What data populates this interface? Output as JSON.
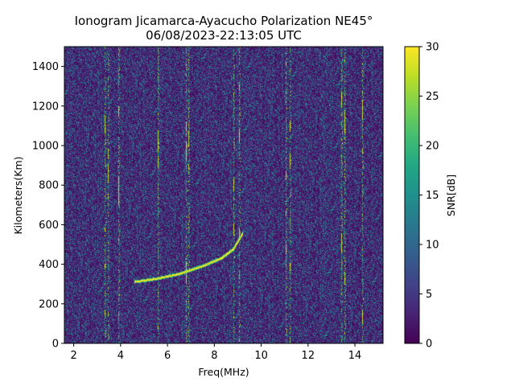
{
  "chart_data": {
    "type": "heatmap",
    "title": "Ionogram Jicamarca-Ayacucho Polarization NE45°",
    "subtitle": "06/08/2023-22:13:05 UTC",
    "xlabel": "Freq(MHz)",
    "ylabel": "Kilometers(Km)",
    "xlim": [
      1.6,
      15.2
    ],
    "ylim": [
      0,
      1500
    ],
    "x_ticks": [
      2,
      4,
      6,
      8,
      10,
      12,
      14
    ],
    "y_ticks": [
      0,
      200,
      400,
      600,
      800,
      1000,
      1200,
      1400
    ],
    "colorbar": {
      "label": "SNR[dB]",
      "colormap": "viridis",
      "range": [
        0,
        30
      ],
      "ticks": [
        0,
        5,
        10,
        15,
        20,
        25,
        30
      ]
    },
    "trace": {
      "description_points": [
        {
          "freq_mhz": 4.6,
          "km": 315
        },
        {
          "freq_mhz": 5.5,
          "km": 330
        },
        {
          "freq_mhz": 6.5,
          "km": 355
        },
        {
          "freq_mhz": 7.5,
          "km": 395
        },
        {
          "freq_mhz": 8.3,
          "km": 435
        },
        {
          "freq_mhz": 8.8,
          "km": 480
        },
        {
          "freq_mhz": 9.2,
          "km": 560
        }
      ]
    },
    "interference_lines_mhz": [
      3.3,
      3.45,
      3.9,
      5.6,
      6.8,
      6.9,
      8.8,
      9.05,
      11.05,
      11.2,
      13.4,
      13.55,
      14.3
    ]
  }
}
